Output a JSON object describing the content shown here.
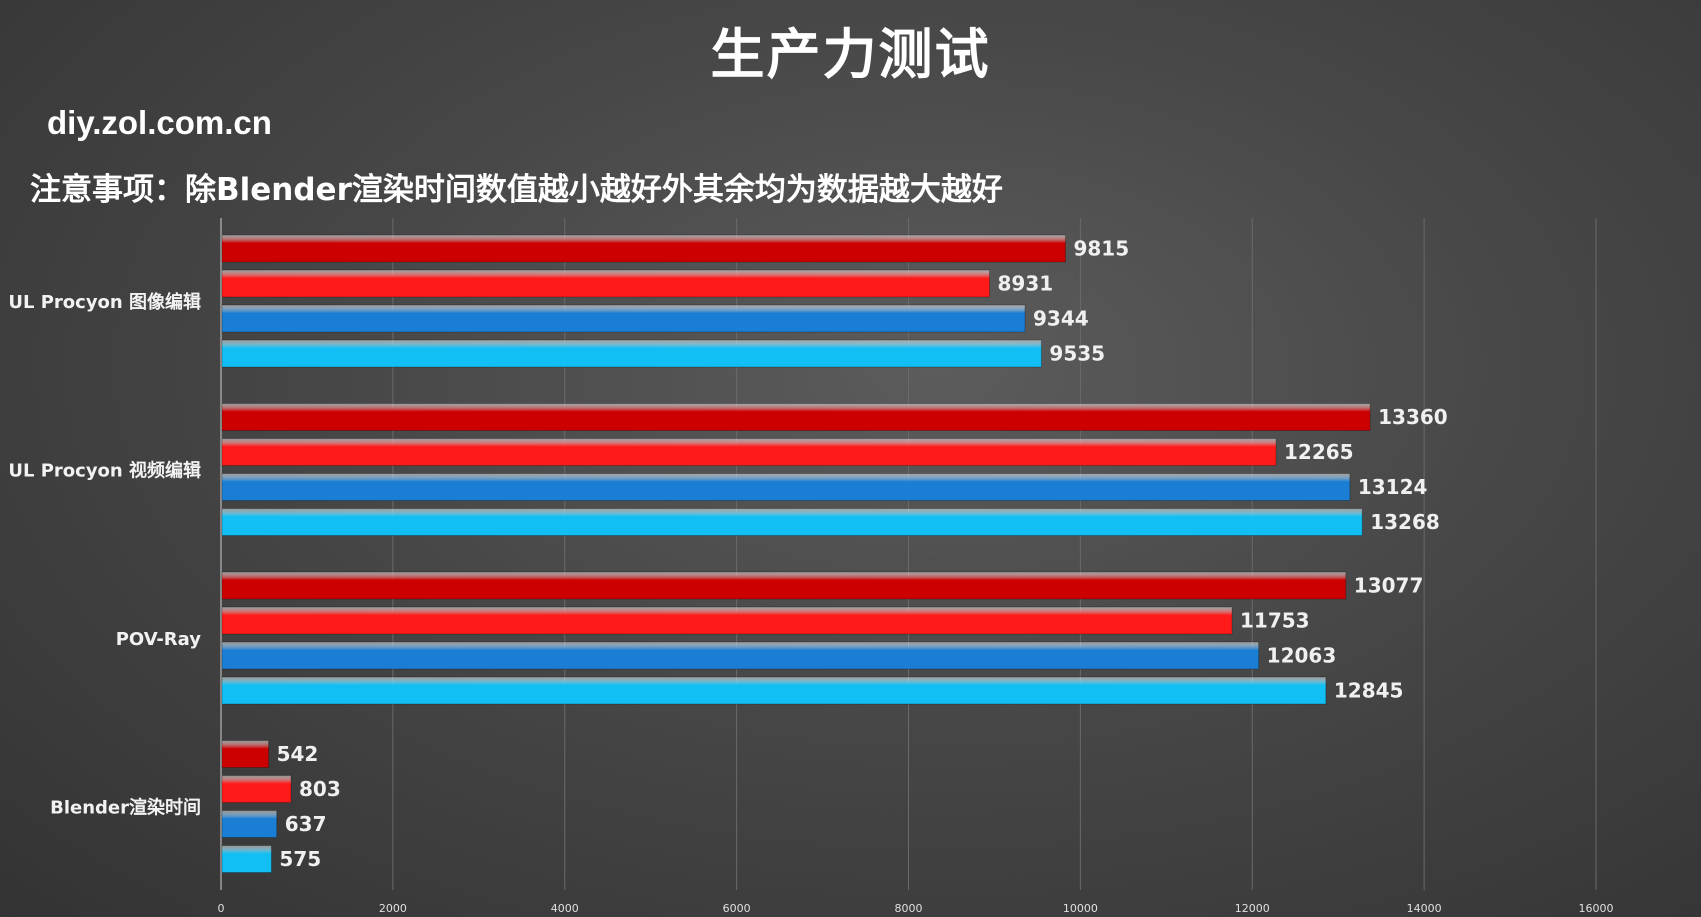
{
  "header": {
    "title": "生产力测试",
    "watermark": "diy.zol.com.cn",
    "note": "注意事项：除Blender渲染时间数值越小越好外其余均为数据越大越好"
  },
  "colors": {
    "series_1": "#cc0000",
    "series_2": "#ff1a1a",
    "series_3": "#1a7fd4",
    "series_4": "#12bff5",
    "gridline": "#6a6a6a",
    "axis": "#cfcfcf"
  },
  "chart_data": {
    "type": "bar",
    "orientation": "horizontal",
    "title": "生产力测试",
    "xlabel": "",
    "ylabel": "",
    "xlim": [
      0,
      16000
    ],
    "x_ticks": [
      0,
      2000,
      4000,
      6000,
      8000,
      10000,
      12000,
      14000,
      16000
    ],
    "grid": "vertical",
    "legend": "none",
    "categories": [
      "UL Procyon 图像编辑",
      "UL Procyon 视频编辑",
      "POV-Ray",
      "Blender渲染时间"
    ],
    "series": [
      {
        "color": "#cc0000",
        "values": [
          9815,
          13360,
          13077,
          542
        ]
      },
      {
        "color": "#ff1a1a",
        "values": [
          8931,
          12265,
          11753,
          803
        ]
      },
      {
        "color": "#1a7fd4",
        "values": [
          9344,
          13124,
          12063,
          637
        ]
      },
      {
        "color": "#12bff5",
        "values": [
          9535,
          13268,
          12845,
          575
        ]
      }
    ]
  }
}
